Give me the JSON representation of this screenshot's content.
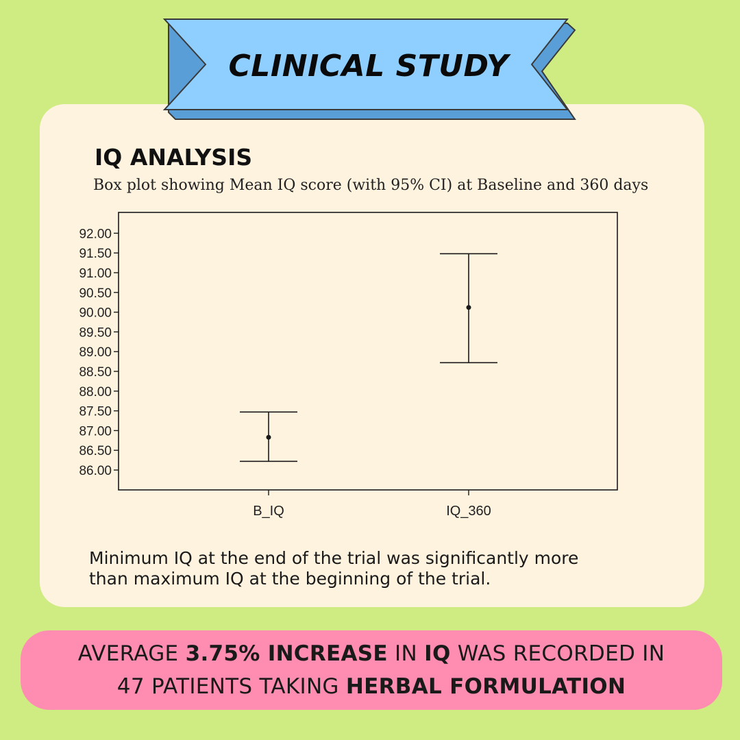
{
  "banner": {
    "title": "CLINICAL STUDY"
  },
  "section": {
    "title": "IQ ANALYSIS"
  },
  "chart_data": {
    "type": "errorbar",
    "title": "Box plot showing Mean IQ score (with 95% CI) at Baseline and 360 days",
    "categories": [
      "B_IQ",
      "IQ_360"
    ],
    "series": [
      {
        "mean": 86.83,
        "lower": 86.22,
        "upper": 87.47
      },
      {
        "mean": 90.12,
        "lower": 88.72,
        "upper": 91.48
      }
    ],
    "ylim": [
      85.6,
      92.6
    ],
    "yticks": [
      "86.00",
      "86.50",
      "87.00",
      "87.50",
      "88.00",
      "88.50",
      "89.00",
      "89.50",
      "90.00",
      "90.50",
      "91.00",
      "91.50",
      "92.00"
    ],
    "grid": false,
    "colors": {
      "line": "#1a1a1a"
    }
  },
  "note": {
    "line1": "Minimum IQ at the end of the trial was significantly more",
    "line2": "than maximum IQ at the beginning of the trial."
  },
  "callout": {
    "l1_a": "AVERAGE ",
    "l1_b": "3.75% INCREASE",
    "l1_c": " IN ",
    "l1_d": "IQ",
    "l1_e": " WAS RECORDED IN",
    "l2_a": "47 PATIENTS TAKING ",
    "l2_b": "HERBAL FORMULATION"
  },
  "colors": {
    "background": "#cfec82",
    "card": "#fdf3de",
    "banner": "#8ecfff",
    "callout": "#ff8db1"
  }
}
